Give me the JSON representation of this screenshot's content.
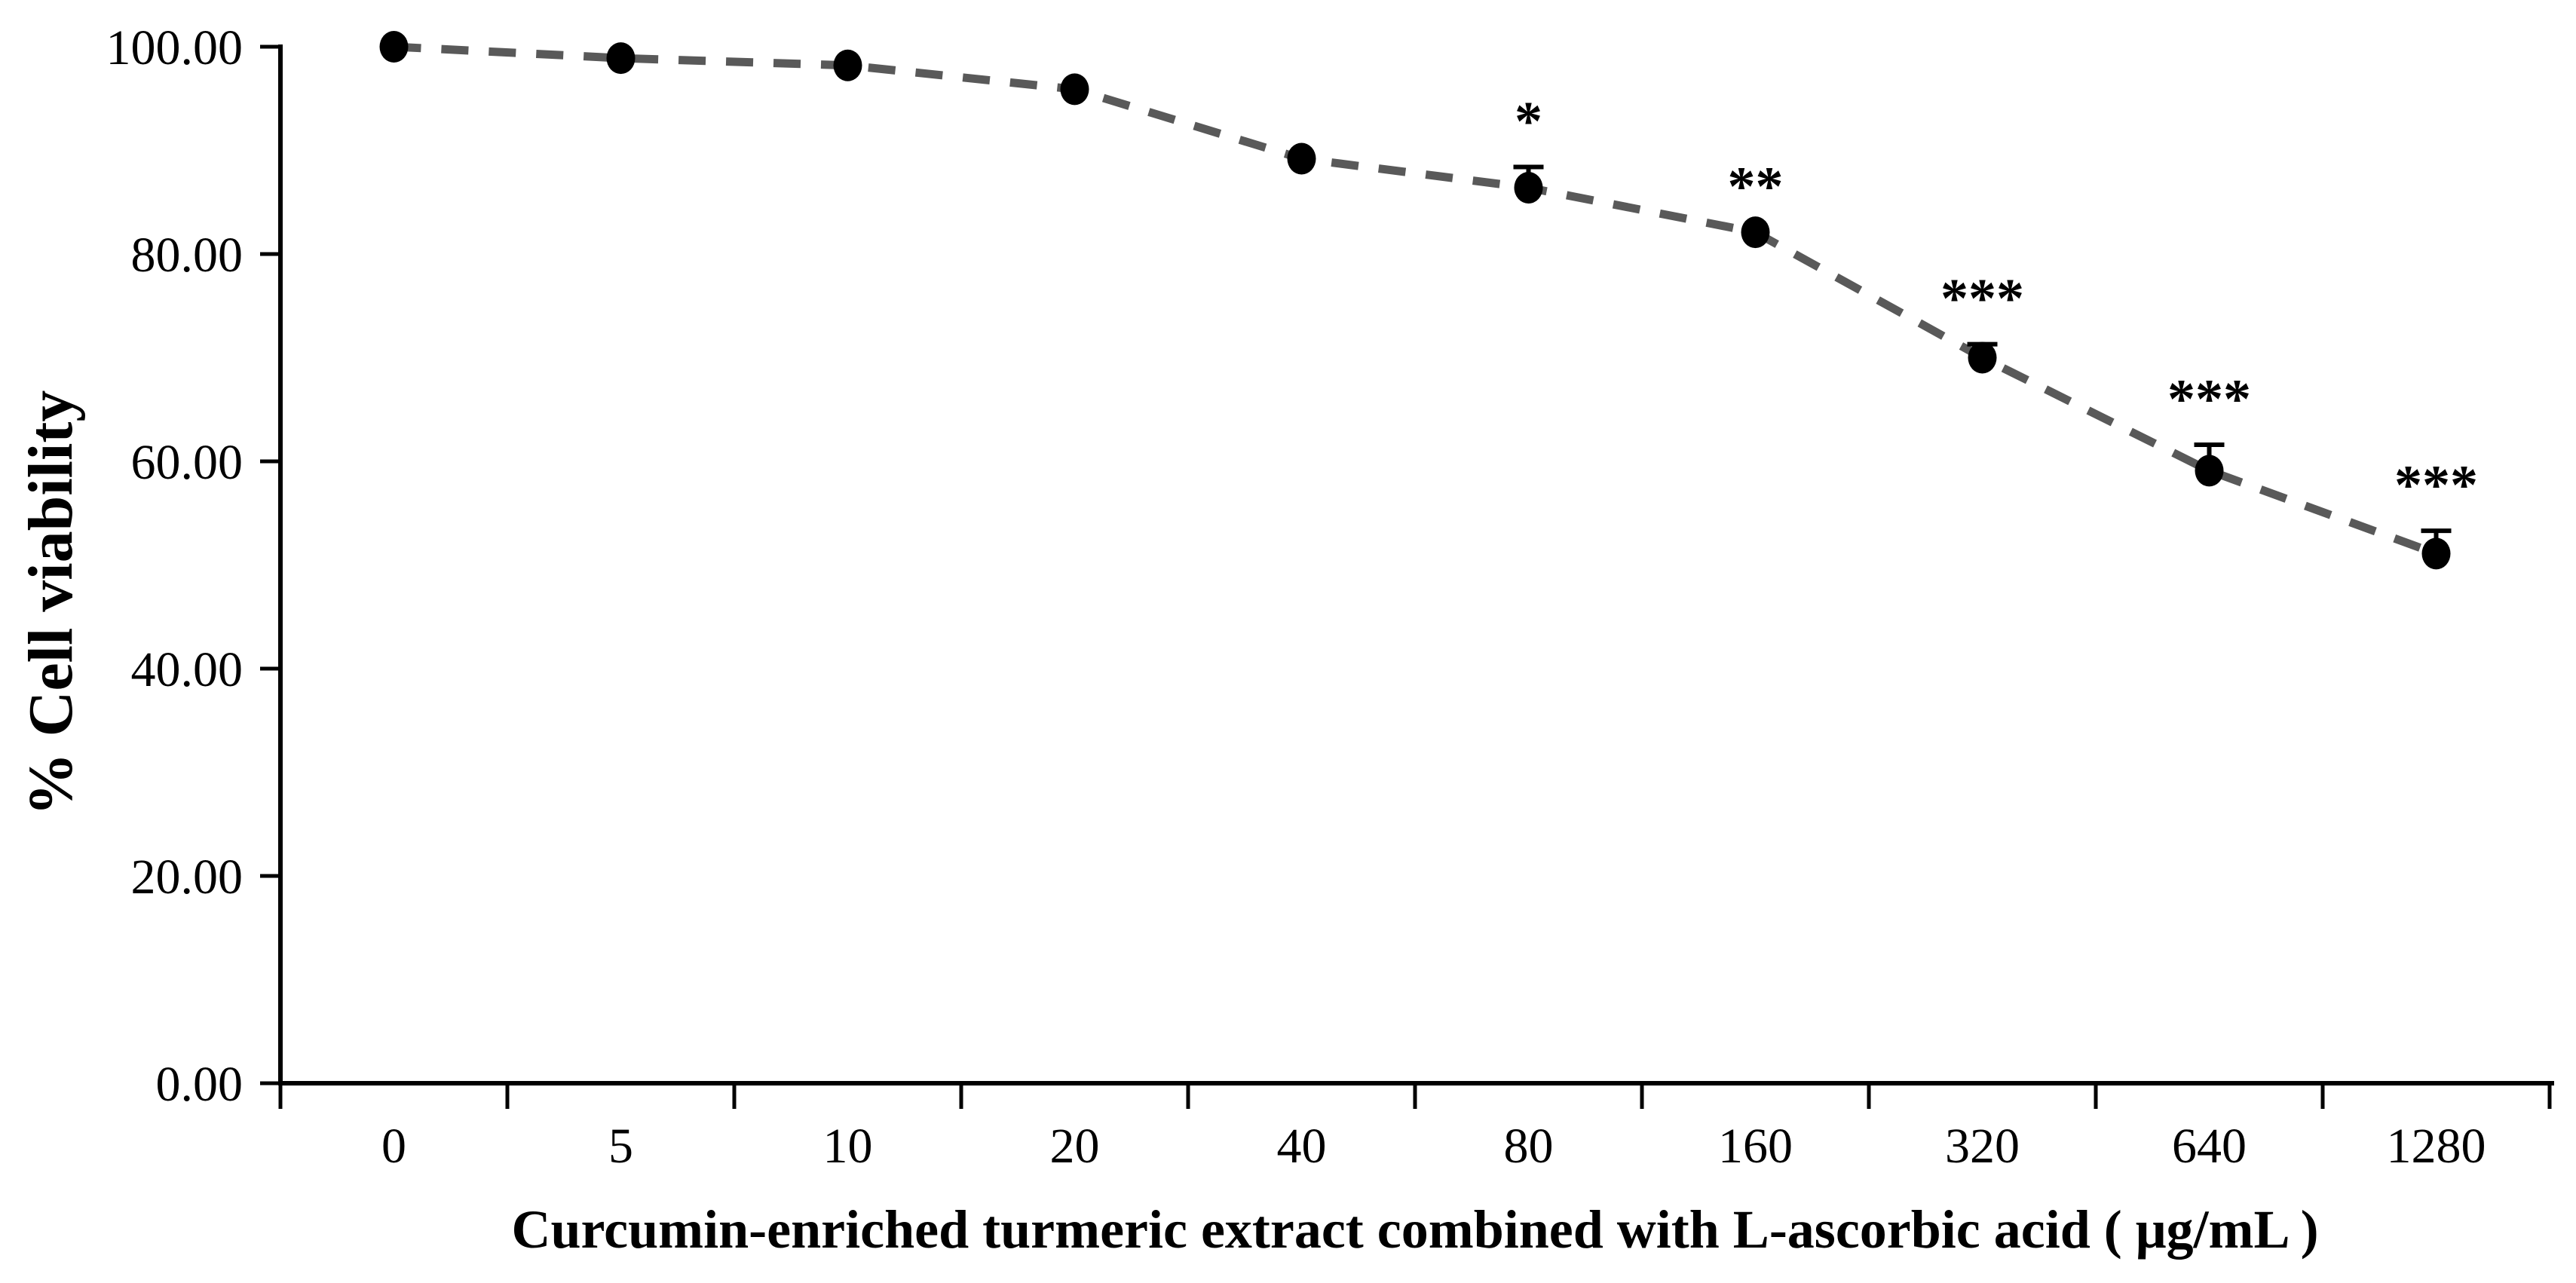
{
  "figure": {
    "background_color": "#ffffff",
    "description_visible_text_only": true
  },
  "chart_data": {
    "type": "line",
    "title": "",
    "xlabel": "Curcumin-enriched turmeric extract combined with L-ascorbic acid ( μg/mL )",
    "ylabel": "% Cell viability",
    "categories": [
      "0",
      "5",
      "10",
      "20",
      "40",
      "80",
      "160",
      "320",
      "640",
      "1280"
    ],
    "series": [
      {
        "name": "% Cell viability",
        "values": [
          100.0,
          98.9,
          98.2,
          95.9,
          89.2,
          86.4,
          82.1,
          70.0,
          59.1,
          51.1
        ],
        "error_upper": [
          0,
          0,
          0,
          0,
          0,
          2.0,
          0,
          1.3,
          2.5,
          2.2
        ],
        "significance": [
          "",
          "",
          "",
          "",
          "",
          "*",
          "**",
          "***",
          "***",
          "***"
        ]
      }
    ],
    "ylim": [
      0,
      100
    ],
    "ytick_step": 20,
    "ytick_labels": [
      "0.00",
      "20.00",
      "40.00",
      "60.00",
      "80.00",
      "100.00"
    ],
    "grid": false,
    "legend_position": "none",
    "line_style": "dashed",
    "line_color": "#595959",
    "marker": "filled-circle",
    "marker_color": "#000000",
    "error_bar_color": "#000000",
    "axis_color": "#000000",
    "text_color": "#000000"
  }
}
